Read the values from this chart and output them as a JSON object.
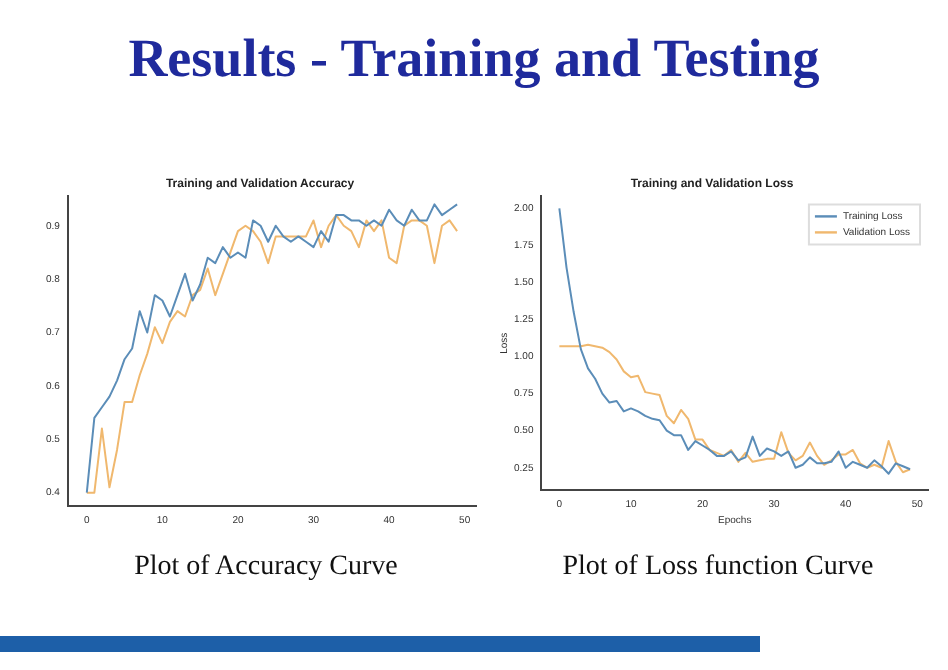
{
  "chart_data": [
    {
      "type": "other",
      "title": "Results - Training and Testing"
    },
    {
      "type": "line",
      "title": "Training and Validation Accuracy",
      "x": [
        0,
        1,
        2,
        3,
        4,
        5,
        6,
        7,
        8,
        9,
        10,
        11,
        12,
        13,
        14,
        15,
        16,
        17,
        18,
        19,
        20,
        21,
        22,
        23,
        24,
        25,
        26,
        27,
        28,
        29,
        30,
        31,
        32,
        33,
        34,
        35,
        36,
        37,
        38,
        39,
        40,
        41,
        42,
        43,
        44,
        45,
        46,
        47,
        48,
        49
      ],
      "xlim": [
        -2.5,
        51.5
      ],
      "xticks": [
        0,
        10,
        20,
        30,
        40,
        50
      ],
      "ylim": [
        0.375,
        0.955
      ],
      "yticks": [
        {
          "value": 0.4,
          "label": "0.4"
        },
        {
          "value": 0.5,
          "label": "0.5"
        },
        {
          "value": 0.6,
          "label": "0.6"
        },
        {
          "value": 0.7,
          "label": "0.7"
        },
        {
          "value": 0.8,
          "label": "0.8"
        },
        {
          "value": 0.9,
          "label": "0.9"
        }
      ],
      "grid": false,
      "legend": false,
      "series": [
        {
          "color": "#5b8db8",
          "values": [
            0.4,
            0.54,
            0.56,
            0.58,
            0.61,
            0.65,
            0.67,
            0.74,
            0.7,
            0.77,
            0.76,
            0.73,
            0.77,
            0.81,
            0.76,
            0.79,
            0.84,
            0.83,
            0.86,
            0.84,
            0.85,
            0.84,
            0.91,
            0.9,
            0.87,
            0.9,
            0.88,
            0.87,
            0.88,
            0.87,
            0.86,
            0.89,
            0.87,
            0.92,
            0.92,
            0.91,
            0.91,
            0.9,
            0.91,
            0.9,
            0.93,
            0.91,
            0.9,
            0.93,
            0.91,
            0.91,
            0.94,
            0.92,
            0.93,
            0.94
          ]
        },
        {
          "color": "#f0b86e",
          "values": [
            0.4,
            0.4,
            0.52,
            0.41,
            0.48,
            0.57,
            0.57,
            0.62,
            0.66,
            0.71,
            0.68,
            0.72,
            0.74,
            0.73,
            0.77,
            0.78,
            0.82,
            0.77,
            0.81,
            0.85,
            0.89,
            0.9,
            0.89,
            0.87,
            0.83,
            0.88,
            0.88,
            0.88,
            0.88,
            0.88,
            0.91,
            0.86,
            0.9,
            0.92,
            0.9,
            0.89,
            0.86,
            0.91,
            0.89,
            0.91,
            0.84,
            0.83,
            0.9,
            0.91,
            0.91,
            0.9,
            0.83,
            0.9,
            0.91,
            0.89
          ]
        }
      ],
      "annotations": [
        "Plot of Accuracy Curve"
      ]
    },
    {
      "type": "line",
      "title": "Training and Validation Loss",
      "xlabel": "Epochs",
      "ylabel": "Loss",
      "x": [
        0,
        1,
        2,
        3,
        4,
        5,
        6,
        7,
        8,
        9,
        10,
        11,
        12,
        13,
        14,
        15,
        16,
        17,
        18,
        19,
        20,
        21,
        22,
        23,
        24,
        25,
        26,
        27,
        28,
        29,
        30,
        31,
        32,
        33,
        34,
        35,
        36,
        37,
        38,
        39,
        40,
        41,
        42,
        43,
        44,
        45,
        46,
        47,
        48,
        49
      ],
      "xlim": [
        -2.5,
        51.5
      ],
      "xticks": [
        0,
        10,
        20,
        30,
        40,
        50
      ],
      "ylim": [
        0.1,
        2.08
      ],
      "yticks": [
        {
          "value": 0.25,
          "label": "0.25"
        },
        {
          "value": 0.5,
          "label": "0.50"
        },
        {
          "value": 0.75,
          "label": "0.75"
        },
        {
          "value": 1,
          "label": "1.00"
        },
        {
          "value": 1.25,
          "label": "1.25"
        },
        {
          "value": 1.5,
          "label": "1.50"
        },
        {
          "value": 1.75,
          "label": "1.75"
        },
        {
          "value": 2,
          "label": "2.00"
        }
      ],
      "grid": false,
      "legend": "top right",
      "series": [
        {
          "name": "Training Loss",
          "color": "#5b8db8",
          "values": [
            2.0,
            1.6,
            1.3,
            1.05,
            0.92,
            0.85,
            0.75,
            0.69,
            0.7,
            0.63,
            0.65,
            0.63,
            0.6,
            0.58,
            0.57,
            0.5,
            0.47,
            0.47,
            0.37,
            0.43,
            0.4,
            0.37,
            0.33,
            0.33,
            0.36,
            0.3,
            0.32,
            0.46,
            0.33,
            0.38,
            0.36,
            0.33,
            0.36,
            0.25,
            0.27,
            0.32,
            0.28,
            0.28,
            0.29,
            0.36,
            0.25,
            0.29,
            0.27,
            0.25,
            0.3,
            0.26,
            0.21,
            0.28,
            0.26,
            0.24
          ]
        },
        {
          "name": "Validation Loss",
          "color": "#f0b86e",
          "values": [
            1.07,
            1.07,
            1.07,
            1.07,
            1.08,
            1.07,
            1.06,
            1.03,
            0.98,
            0.9,
            0.86,
            0.87,
            0.76,
            0.75,
            0.74,
            0.6,
            0.55,
            0.64,
            0.58,
            0.44,
            0.44,
            0.37,
            0.35,
            0.33,
            0.37,
            0.29,
            0.35,
            0.29,
            0.3,
            0.31,
            0.31,
            0.49,
            0.35,
            0.3,
            0.33,
            0.42,
            0.33,
            0.27,
            0.3,
            0.34,
            0.34,
            0.37,
            0.28,
            0.25,
            0.27,
            0.25,
            0.43,
            0.29,
            0.22,
            0.24
          ]
        }
      ],
      "annotations": [
        "Plot of Loss function Curve"
      ]
    }
  ]
}
